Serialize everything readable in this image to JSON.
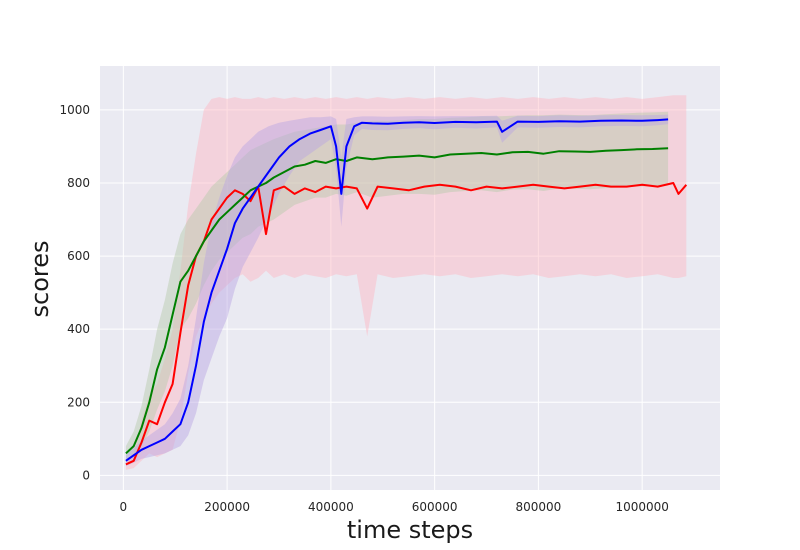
{
  "chart_data": {
    "type": "line",
    "title": "",
    "xlabel": "time steps",
    "ylabel": "scores",
    "xlim": [
      -45000,
      1150000
    ],
    "ylim": [
      -40,
      1120
    ],
    "xticks": [
      0,
      200000,
      400000,
      600000,
      800000,
      1000000
    ],
    "xtick_labels": [
      "0",
      "200000",
      "400000",
      "600000",
      "800000",
      "1000000"
    ],
    "yticks": [
      0,
      200,
      400,
      600,
      800,
      1000
    ],
    "ytick_labels": [
      "0",
      "200",
      "400",
      "600",
      "800",
      "1000"
    ],
    "grid": true,
    "legend": "none",
    "background": "#eaeaf2",
    "series": [
      {
        "color": "#ff0000",
        "band_color": "#ffb6c1",
        "x": [
          5000,
          20000,
          35000,
          50000,
          65000,
          80000,
          95000,
          110000,
          125000,
          140000,
          155000,
          170000,
          185000,
          200000,
          215000,
          230000,
          245000,
          260000,
          275000,
          290000,
          310000,
          330000,
          350000,
          370000,
          390000,
          410000,
          430000,
          450000,
          470000,
          490000,
          520000,
          550000,
          580000,
          610000,
          640000,
          670000,
          700000,
          730000,
          760000,
          790000,
          820000,
          850000,
          880000,
          910000,
          940000,
          970000,
          1000000,
          1030000,
          1060000,
          1070000,
          1085000
        ],
        "y": [
          30,
          40,
          90,
          150,
          140,
          200,
          250,
          390,
          520,
          600,
          640,
          700,
          730,
          760,
          780,
          770,
          750,
          790,
          660,
          780,
          790,
          770,
          785,
          775,
          790,
          785,
          790,
          785,
          730,
          790,
          785,
          780,
          790,
          795,
          790,
          780,
          790,
          785,
          790,
          795,
          790,
          785,
          790,
          795,
          790,
          790,
          795,
          790,
          800,
          770,
          795
        ],
        "upper": [
          40,
          60,
          150,
          220,
          250,
          320,
          400,
          560,
          740,
          880,
          1000,
          1030,
          1035,
          1030,
          1035,
          1030,
          1030,
          1035,
          1030,
          1035,
          1030,
          1035,
          1030,
          1035,
          1030,
          1035,
          1030,
          1035,
          1030,
          1035,
          1030,
          1035,
          1030,
          1035,
          1030,
          1035,
          1030,
          1035,
          1030,
          1035,
          1030,
          1035,
          1030,
          1035,
          1030,
          1035,
          1030,
          1035,
          1040,
          1040,
          1040
        ],
        "lower": [
          15,
          20,
          40,
          60,
          50,
          60,
          70,
          150,
          280,
          380,
          430,
          470,
          500,
          520,
          540,
          550,
          530,
          540,
          560,
          540,
          550,
          540,
          550,
          545,
          540,
          550,
          545,
          550,
          380,
          550,
          540,
          545,
          550,
          545,
          550,
          540,
          545,
          550,
          545,
          550,
          540,
          545,
          550,
          545,
          550,
          540,
          545,
          550,
          540,
          540,
          545
        ]
      },
      {
        "color": "#008000",
        "band_color": "#b5c9a8",
        "x": [
          5000,
          20000,
          35000,
          50000,
          65000,
          80000,
          95000,
          110000,
          125000,
          140000,
          155000,
          170000,
          185000,
          200000,
          215000,
          230000,
          245000,
          260000,
          275000,
          290000,
          310000,
          330000,
          350000,
          370000,
          390000,
          410000,
          430000,
          450000,
          480000,
          510000,
          540000,
          570000,
          600000,
          630000,
          660000,
          690000,
          720000,
          750000,
          780000,
          810000,
          840000,
          870000,
          900000,
          930000,
          960000,
          990000,
          1020000,
          1050000
        ],
        "y": [
          60,
          80,
          130,
          200,
          290,
          350,
          440,
          530,
          560,
          600,
          640,
          670,
          700,
          720,
          740,
          760,
          780,
          790,
          800,
          815,
          830,
          845,
          850,
          860,
          855,
          865,
          860,
          870,
          865,
          870,
          872,
          875,
          870,
          878,
          880,
          882,
          878,
          884,
          885,
          880,
          887,
          886,
          885,
          888,
          890,
          892,
          893,
          895
        ],
        "upper": [
          80,
          120,
          190,
          290,
          400,
          480,
          580,
          660,
          700,
          730,
          760,
          790,
          810,
          830,
          850,
          870,
          890,
          900,
          910,
          920,
          930,
          940,
          945,
          950,
          955,
          960,
          960,
          965,
          970,
          970,
          972,
          975,
          975,
          978,
          980,
          982,
          982,
          984,
          985,
          985,
          987,
          986,
          985,
          988,
          990,
          992,
          993,
          995
        ],
        "lower": [
          40,
          50,
          80,
          120,
          180,
          230,
          300,
          400,
          430,
          470,
          520,
          560,
          590,
          610,
          630,
          650,
          660,
          680,
          690,
          700,
          720,
          740,
          750,
          760,
          760,
          770,
          765,
          775,
          760,
          765,
          770,
          770,
          768,
          775,
          778,
          780,
          775,
          782,
          783,
          778,
          785,
          784,
          783,
          786,
          788,
          790,
          791,
          793
        ]
      },
      {
        "color": "#0000ff",
        "band_color": "#b9a3e3",
        "x": [
          5000,
          20000,
          35000,
          50000,
          65000,
          80000,
          95000,
          110000,
          125000,
          140000,
          155000,
          170000,
          185000,
          200000,
          215000,
          230000,
          245000,
          260000,
          280000,
          300000,
          320000,
          340000,
          360000,
          380000,
          400000,
          410000,
          420000,
          430000,
          445000,
          460000,
          480000,
          510000,
          540000,
          570000,
          600000,
          640000,
          680000,
          720000,
          730000,
          760000,
          800000,
          840000,
          880000,
          920000,
          960000,
          1000000,
          1030000,
          1050000
        ],
        "y": [
          40,
          55,
          70,
          80,
          90,
          100,
          120,
          140,
          200,
          300,
          420,
          500,
          560,
          620,
          690,
          730,
          760,
          790,
          830,
          870,
          900,
          920,
          935,
          945,
          955,
          900,
          770,
          900,
          955,
          965,
          963,
          962,
          965,
          966,
          964,
          967,
          966,
          968,
          940,
          968,
          967,
          969,
          968,
          970,
          971,
          970,
          972,
          974
        ],
        "upper": [
          55,
          75,
          95,
          110,
          125,
          140,
          170,
          210,
          300,
          430,
          580,
          690,
          760,
          820,
          870,
          900,
          920,
          940,
          955,
          965,
          970,
          975,
          980,
          980,
          982,
          975,
          870,
          975,
          980,
          982,
          982,
          981,
          982,
          983,
          982,
          983,
          983,
          984,
          970,
          984,
          983,
          985,
          984,
          985,
          986,
          985,
          986,
          987
        ],
        "lower": [
          25,
          35,
          45,
          50,
          55,
          60,
          70,
          80,
          110,
          170,
          260,
          320,
          380,
          430,
          510,
          570,
          610,
          650,
          710,
          770,
          820,
          860,
          880,
          900,
          920,
          840,
          680,
          840,
          930,
          948,
          945,
          944,
          948,
          950,
          947,
          951,
          949,
          952,
          910,
          952,
          951,
          953,
          952,
          955,
          956,
          955,
          958,
          961
        ]
      }
    ]
  }
}
